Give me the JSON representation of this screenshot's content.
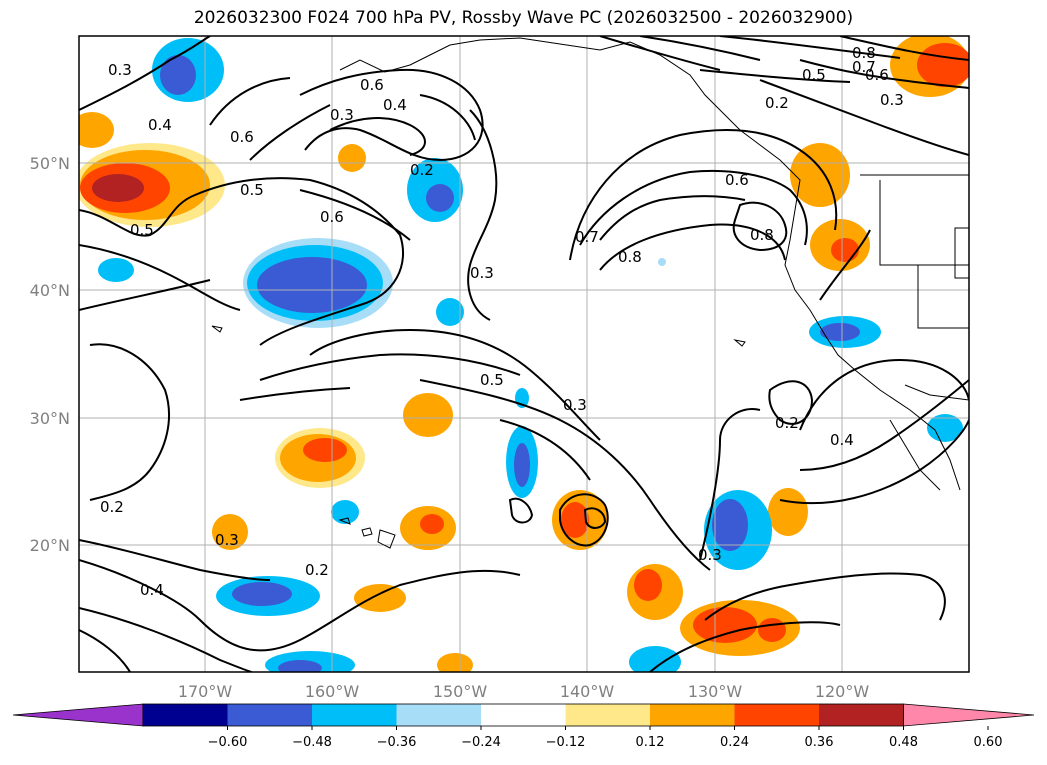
{
  "title": "2026032300 F024 700 hPa PV, Rossby Wave PC (2026032500 - 2026032900)",
  "map": {
    "lat_labels": [
      "50°N",
      "40°N",
      "30°N",
      "20°N"
    ],
    "lon_labels": [
      "170°W",
      "160°W",
      "150°W",
      "140°W",
      "130°W",
      "120°W"
    ],
    "contour_labels": [
      "0.2",
      "0.3",
      "0.4",
      "0.5",
      "0.6",
      "0.7",
      "0.8"
    ],
    "fill_colors": {
      "neg_060": "#000090",
      "neg_048": "#3b5bd4",
      "neg_036": "#00bff8",
      "neg_024": "#a8ddf8",
      "pos_012": "#ffe88a",
      "pos_024": "#ffa500",
      "pos_036": "#ff4400",
      "pos_048": "#b22222"
    }
  },
  "colorbar": {
    "ticks": [
      "−0.60",
      "−0.48",
      "−0.36",
      "−0.24",
      "−0.12",
      "0.12",
      "0.24",
      "0.36",
      "0.48",
      "0.60"
    ],
    "colors": [
      "#9933cc",
      "#000090",
      "#3b5bd4",
      "#00bff8",
      "#a8ddf8",
      "#ffffff",
      "#ffe88a",
      "#ffa500",
      "#ff4400",
      "#b22222",
      "#ff88aa"
    ]
  }
}
